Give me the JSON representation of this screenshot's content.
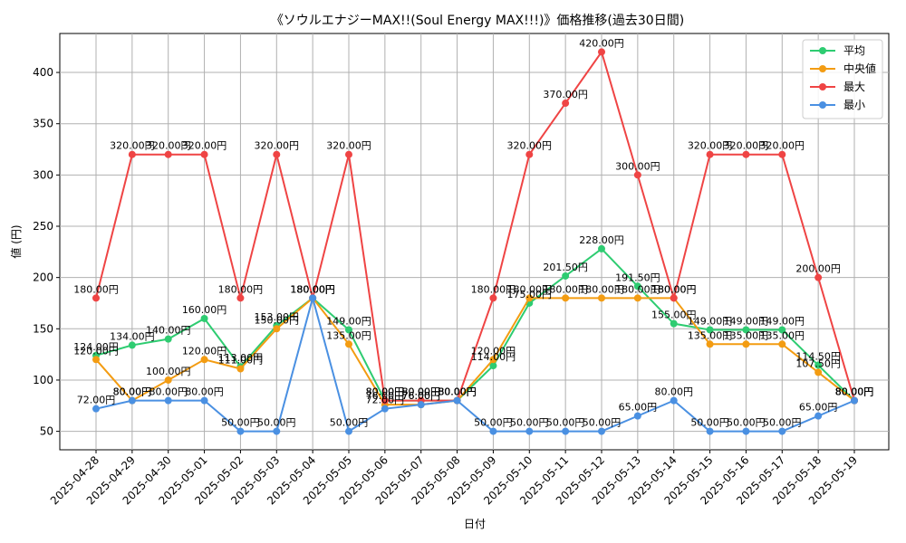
{
  "chart_data": {
    "type": "line",
    "title": "《ソウルエナジーMAX!!(Soul Energy MAX!!!)》価格推移(過去30日間)",
    "xlabel": "日付",
    "ylabel": "値 (円)",
    "x": [
      "2025-04-28",
      "2025-04-29",
      "2025-04-30",
      "2025-05-01",
      "2025-05-02",
      "2025-05-03",
      "2025-05-04",
      "2025-05-05",
      "2025-05-06",
      "2025-05-07",
      "2025-05-08",
      "2025-05-09",
      "2025-05-10",
      "2025-05-11",
      "2025-05-12",
      "2025-05-13",
      "2025-05-14",
      "2025-05-15",
      "2025-05-16",
      "2025-05-17",
      "2025-05-18",
      "2025-05-19"
    ],
    "ylim": [
      32,
      438
    ],
    "yticks": [
      50,
      100,
      150,
      200,
      250,
      300,
      350,
      400
    ],
    "grid": true,
    "legend_position": "top-right",
    "label_suffix": "円",
    "series": [
      {
        "name": "平均",
        "color": "#2ecc71",
        "values": [
          124,
          134,
          140,
          160,
          113,
          153,
          180,
          149,
          80,
          80,
          80,
          114,
          175,
          201.5,
          228,
          191.5,
          155,
          149,
          149,
          149,
          114.5,
          80
        ]
      },
      {
        "name": "中央値",
        "color": "#f39c12",
        "values": [
          120,
          80,
          100,
          120,
          111,
          150,
          180,
          135,
          76,
          76,
          80,
          120,
          180,
          180,
          180,
          180,
          180,
          135,
          135,
          135,
          107.5,
          80
        ]
      },
      {
        "name": "最大",
        "color": "#ef4444",
        "values": [
          180,
          320,
          320,
          320,
          180,
          320,
          180,
          320,
          80,
          80,
          80,
          180,
          320,
          370,
          420,
          300,
          180,
          320,
          320,
          320,
          200,
          80
        ]
      },
      {
        "name": "最小",
        "color": "#4a90e2",
        "values": [
          72,
          80,
          80,
          80,
          50,
          50,
          180,
          50,
          72,
          76,
          80,
          50,
          50,
          50,
          50,
          65,
          80,
          50,
          50,
          50,
          65,
          80
        ]
      }
    ]
  }
}
